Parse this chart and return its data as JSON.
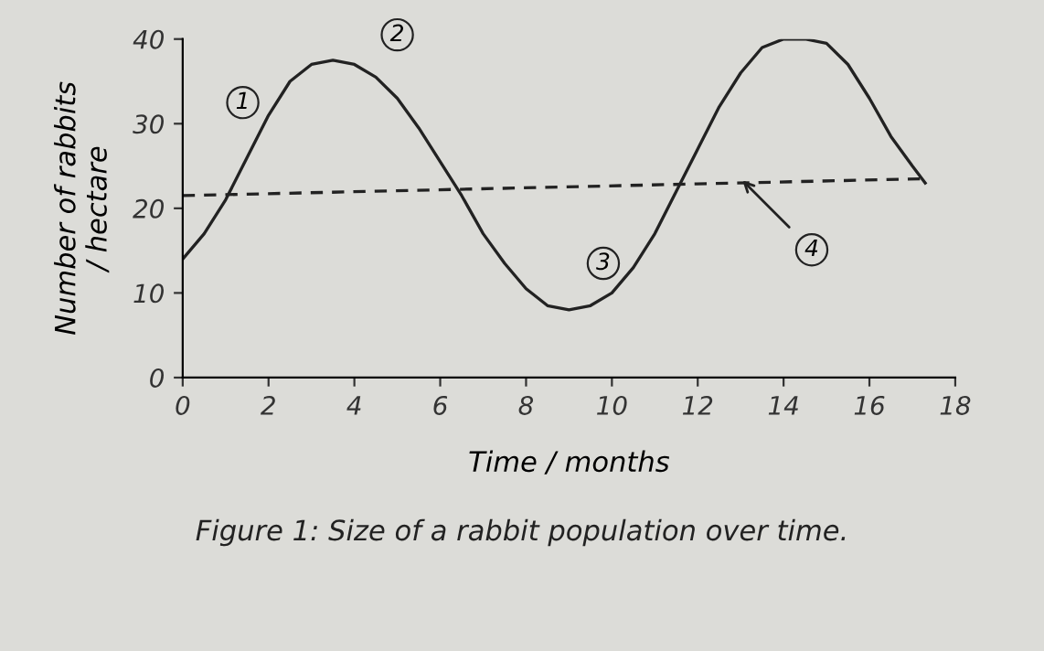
{
  "chart_data": {
    "type": "line",
    "title": "Figure 1: Size of a rabbit population over time.",
    "xlabel": "Time / months",
    "ylabel": "Number of rabbits\n/ hectare",
    "xlim": [
      0,
      18
    ],
    "ylim": [
      0,
      40
    ],
    "xticks": [
      0,
      2,
      4,
      6,
      8,
      10,
      12,
      14,
      16,
      18
    ],
    "yticks": [
      0,
      10,
      20,
      30,
      40
    ],
    "grid": false,
    "marker": "none",
    "series": [
      {
        "color": "#222222",
        "line_style": "solid",
        "x": [
          0,
          0.5,
          1,
          1.5,
          2,
          2.5,
          3,
          3.5,
          4,
          4.5,
          5,
          5.5,
          6,
          6.5,
          7,
          7.5,
          8,
          8.5,
          9,
          9.5,
          10,
          10.5,
          11,
          11.5,
          12,
          12.5,
          13,
          13.5,
          14,
          14.5,
          15,
          15.5,
          16,
          16.5,
          17,
          17.3
        ],
        "values": [
          14,
          17,
          21,
          26,
          31,
          35,
          37,
          37.5,
          37,
          35.5,
          33,
          29.5,
          25.5,
          21.5,
          17,
          13.5,
          10.5,
          8.5,
          8,
          8.5,
          10,
          13,
          17,
          22,
          27,
          32,
          36,
          39,
          40,
          40,
          39.5,
          37,
          33,
          28.5,
          25,
          23
        ]
      },
      {
        "color": "#222222",
        "line_style": "dashed",
        "x": [
          0,
          17.3
        ],
        "values": [
          21.5,
          23.5
        ]
      }
    ],
    "annotations": [
      {
        "text": "1",
        "x": 1.4,
        "y": 32.5
      },
      {
        "text": "2",
        "x": 5,
        "y": 40.5
      },
      {
        "text": "3",
        "x": 9.8,
        "y": 13.5
      },
      {
        "text": "4",
        "x": 13,
        "y": 23.5
      }
    ]
  }
}
